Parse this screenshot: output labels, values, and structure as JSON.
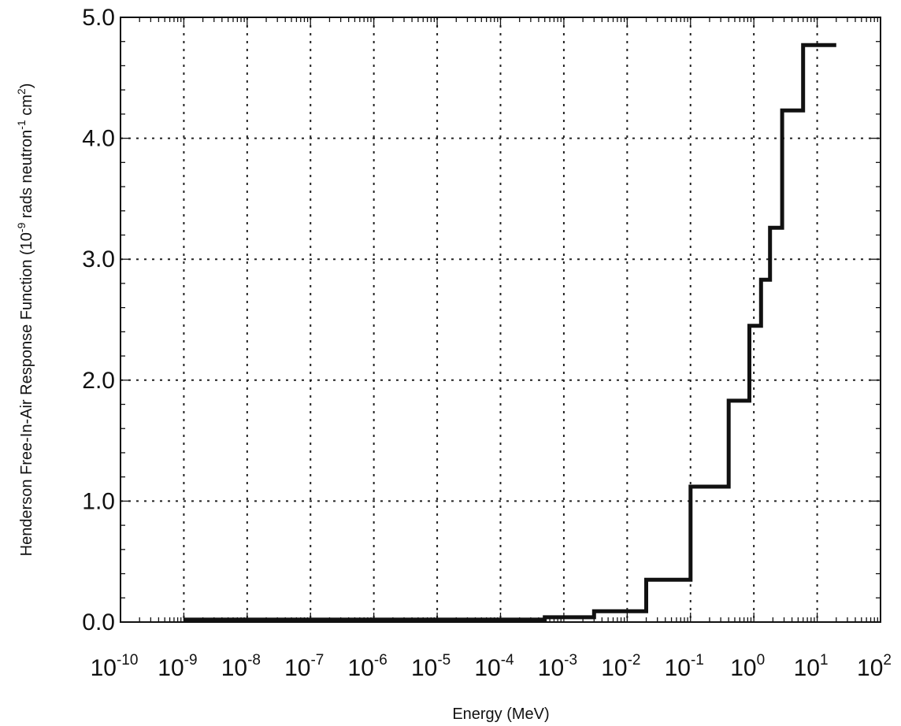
{
  "chart_data": {
    "type": "line",
    "step": "post",
    "xscale": "log",
    "xlabel": "Energy (MeV)",
    "ylabel": "Henderson Free-In-Air Response Function (10^-9 rads neutron^-1 cm^2)",
    "ylabel_parts": {
      "pre": "Henderson Free-In-Air Response Function (10",
      "sup1": "-9",
      "mid": " rads neutron",
      "sup2": "-1",
      "mid2": " cm",
      "sup3": "2",
      "post": ")"
    },
    "xlim": [
      1e-10,
      100
    ],
    "ylim": [
      0,
      5
    ],
    "grid": true,
    "x_ticks": [
      {
        "value": 1e-10,
        "base": "10",
        "exp": "-10"
      },
      {
        "value": 1e-09,
        "base": "10",
        "exp": "-9"
      },
      {
        "value": 1e-08,
        "base": "10",
        "exp": "-8"
      },
      {
        "value": 1e-07,
        "base": "10",
        "exp": "-7"
      },
      {
        "value": 1e-06,
        "base": "10",
        "exp": "-6"
      },
      {
        "value": 1e-05,
        "base": "10",
        "exp": "-5"
      },
      {
        "value": 0.0001,
        "base": "10",
        "exp": "-4"
      },
      {
        "value": 0.001,
        "base": "10",
        "exp": "-3"
      },
      {
        "value": 0.01,
        "base": "10",
        "exp": "-2"
      },
      {
        "value": 0.1,
        "base": "10",
        "exp": "-1"
      },
      {
        "value": 1,
        "base": "10",
        "exp": "0"
      },
      {
        "value": 10,
        "base": "10",
        "exp": "1"
      },
      {
        "value": 100,
        "base": "10",
        "exp": "2"
      }
    ],
    "y_ticks": [
      {
        "value": 0,
        "label": "0.0"
      },
      {
        "value": 1,
        "label": "1.0"
      },
      {
        "value": 2,
        "label": "2.0"
      },
      {
        "value": 3,
        "label": "3.0"
      },
      {
        "value": 4,
        "label": "4.0"
      },
      {
        "value": 5,
        "label": "5.0"
      }
    ],
    "series": [
      {
        "x": [
          1e-09,
          0.0005,
          0.003,
          0.02,
          0.1,
          0.4,
          0.85,
          1.3,
          1.8,
          2.8,
          6.0,
          20
        ],
        "y": [
          0.02,
          0.04,
          0.09,
          0.35,
          1.12,
          1.83,
          2.45,
          2.83,
          3.26,
          4.23,
          4.77,
          4.77
        ]
      }
    ]
  }
}
